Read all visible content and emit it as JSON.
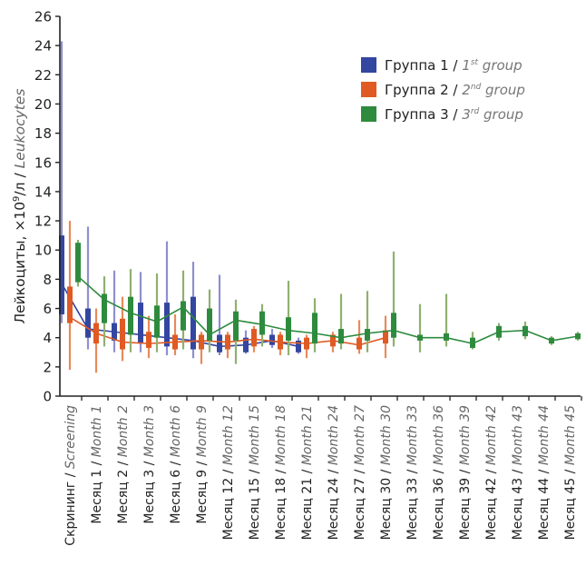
{
  "chart_data": {
    "type": "box",
    "ylabel_main": "Лейкоциты, ×10",
    "ylabel_sup": "9",
    "ylabel_unit": "/л / ",
    "ylabel_en": "Leukocytes",
    "ylim": [
      0,
      26
    ],
    "y_ticks": [
      0,
      2,
      4,
      6,
      8,
      10,
      12,
      14,
      16,
      18,
      20,
      22,
      24,
      26
    ],
    "grid": false,
    "legend_position": "top-right",
    "categories": [
      {
        "ru": "Скрининг / ",
        "en": "Screening"
      },
      {
        "ru": "Месяц 1 / ",
        "en": "Month 1"
      },
      {
        "ru": "Месяц 2 / ",
        "en": "Month 2"
      },
      {
        "ru": "Месяц 3 / ",
        "en": "Month 3"
      },
      {
        "ru": "Месяц 6 / ",
        "en": "Month 6"
      },
      {
        "ru": "Месяц 9 / ",
        "en": "Month 9"
      },
      {
        "ru": "Месяц 12 / ",
        "en": "Month 12"
      },
      {
        "ru": "Месяц 15 / ",
        "en": "Month 15"
      },
      {
        "ru": "Месяц 18 / ",
        "en": "Month 18"
      },
      {
        "ru": "Месяц 21 / ",
        "en": "Month 21"
      },
      {
        "ru": "Месяц 24 / ",
        "en": "Month 24"
      },
      {
        "ru": "Месяц 27 / ",
        "en": "Month 27"
      },
      {
        "ru": "Месяц 30 / ",
        "en": "Month 30"
      },
      {
        "ru": "Месяц 33 / ",
        "en": "Month 33"
      },
      {
        "ru": "Месяц 36 / ",
        "en": "Month 36"
      },
      {
        "ru": "Месяц 39 / ",
        "en": "Month 39"
      },
      {
        "ru": "Месяц 42 / ",
        "en": "Month 42"
      },
      {
        "ru": "Месяц 43 / ",
        "en": "Month 43"
      },
      {
        "ru": "Месяц 44 / ",
        "en": "Month 44"
      },
      {
        "ru": "Месяц 45 / ",
        "en": "Month 45"
      }
    ],
    "series": [
      {
        "name": "Группа 1 / ",
        "name_sup": "1",
        "name_sup_text": "st",
        "name_en": " group",
        "color": "#3346a0",
        "whisker_color": "#8e8fd0",
        "points": [
          {
            "i": 0,
            "median": 7.7,
            "q1": 5.6,
            "q3": 11.0,
            "min": 5.0,
            "max": 24.3
          },
          {
            "i": 1,
            "median": 4.6,
            "q1": 4.0,
            "q3": 6.0,
            "min": 3.2,
            "max": 11.6
          },
          {
            "i": 2,
            "median": 4.4,
            "q1": 3.8,
            "q3": 5.0,
            "min": 3.0,
            "max": 8.6
          },
          {
            "i": 3,
            "median": 4.2,
            "q1": 3.6,
            "q3": 6.4,
            "min": 3.0,
            "max": 8.5
          },
          {
            "i": 4,
            "median": 4.0,
            "q1": 3.4,
            "q3": 6.4,
            "min": 2.8,
            "max": 10.6
          },
          {
            "i": 5,
            "median": 3.8,
            "q1": 3.2,
            "q3": 6.8,
            "min": 2.6,
            "max": 9.2
          },
          {
            "i": 6,
            "median": 3.4,
            "q1": 3.0,
            "q3": 4.2,
            "min": 2.8,
            "max": 8.3
          },
          {
            "i": 7,
            "median": 3.5,
            "q1": 3.0,
            "q3": 4.0,
            "min": 2.9,
            "max": 4.5
          },
          {
            "i": 8,
            "median": 3.8,
            "q1": 3.5,
            "q3": 4.2,
            "min": 3.3,
            "max": 4.6
          },
          {
            "i": 9,
            "median": 3.4,
            "q1": 3.0,
            "q3": 3.8,
            "min": 2.9,
            "max": 4.0
          }
        ]
      },
      {
        "name": "Группа 2 / ",
        "name_sup": "2",
        "name_sup_text": "nd",
        "name_en": " group",
        "color": "#e05a23",
        "whisker_color": "#e88a5a",
        "points": [
          {
            "i": 0,
            "median": 5.4,
            "q1": 5.0,
            "q3": 7.5,
            "min": 1.8,
            "max": 12.0
          },
          {
            "i": 1,
            "median": 4.3,
            "q1": 3.6,
            "q3": 5.0,
            "min": 1.6,
            "max": 6.0
          },
          {
            "i": 2,
            "median": 3.7,
            "q1": 3.2,
            "q3": 5.3,
            "min": 2.4,
            "max": 6.8
          },
          {
            "i": 3,
            "median": 3.6,
            "q1": 3.3,
            "q3": 4.4,
            "min": 2.6,
            "max": 5.5
          },
          {
            "i": 4,
            "median": 3.7,
            "q1": 3.2,
            "q3": 4.2,
            "min": 2.8,
            "max": 5.6
          },
          {
            "i": 5,
            "median": 3.8,
            "q1": 3.2,
            "q3": 4.2,
            "min": 2.2,
            "max": 4.4
          },
          {
            "i": 6,
            "median": 3.7,
            "q1": 3.2,
            "q3": 4.2,
            "min": 2.6,
            "max": 4.4
          },
          {
            "i": 7,
            "median": 3.9,
            "q1": 3.4,
            "q3": 4.6,
            "min": 3.0,
            "max": 4.8
          },
          {
            "i": 8,
            "median": 3.7,
            "q1": 3.2,
            "q3": 4.2,
            "min": 2.8,
            "max": 4.4
          },
          {
            "i": 9,
            "median": 3.6,
            "q1": 3.2,
            "q3": 4.0,
            "min": 2.6,
            "max": 4.2
          },
          {
            "i": 10,
            "median": 3.8,
            "q1": 3.4,
            "q3": 4.2,
            "min": 3.0,
            "max": 4.4
          },
          {
            "i": 11,
            "median": 3.5,
            "q1": 3.2,
            "q3": 4.0,
            "min": 2.9,
            "max": 5.2
          },
          {
            "i": 12,
            "median": 4.0,
            "q1": 3.6,
            "q3": 4.5,
            "min": 2.6,
            "max": 5.5
          }
        ]
      },
      {
        "name": "Группа 3 / ",
        "name_sup": "3",
        "name_sup_text": "rd",
        "name_en": " group",
        "color": "#2e8b3e",
        "whisker_color": "#8fb070",
        "points": [
          {
            "i": 0,
            "median": 8.2,
            "q1": 7.8,
            "q3": 10.5,
            "min": 7.5,
            "max": 10.7
          },
          {
            "i": 1,
            "median": 6.6,
            "q1": 5.0,
            "q3": 7.0,
            "min": 3.4,
            "max": 8.2
          },
          {
            "i": 2,
            "median": 5.7,
            "q1": 4.2,
            "q3": 6.8,
            "min": 3.0,
            "max": 8.7
          },
          {
            "i": 3,
            "median": 5.1,
            "q1": 4.0,
            "q3": 6.2,
            "min": 3.0,
            "max": 8.4
          },
          {
            "i": 4,
            "median": 6.1,
            "q1": 4.5,
            "q3": 6.5,
            "min": 3.2,
            "max": 8.6
          },
          {
            "i": 5,
            "median": 4.2,
            "q1": 3.8,
            "q3": 6.0,
            "min": 3.0,
            "max": 7.3
          },
          {
            "i": 6,
            "median": 5.2,
            "q1": 3.8,
            "q3": 5.8,
            "min": 2.2,
            "max": 6.6
          },
          {
            "i": 7,
            "median": 4.9,
            "q1": 4.2,
            "q3": 5.8,
            "min": 3.4,
            "max": 6.3
          },
          {
            "i": 8,
            "median": 4.5,
            "q1": 3.8,
            "q3": 5.4,
            "min": 2.8,
            "max": 7.9
          },
          {
            "i": 9,
            "median": 4.3,
            "q1": 3.6,
            "q3": 5.7,
            "min": 3.0,
            "max": 6.7
          },
          {
            "i": 10,
            "median": 4.0,
            "q1": 3.6,
            "q3": 4.6,
            "min": 3.2,
            "max": 7.0
          },
          {
            "i": 11,
            "median": 4.3,
            "q1": 3.8,
            "q3": 4.6,
            "min": 3.0,
            "max": 7.2
          },
          {
            "i": 12,
            "median": 4.5,
            "q1": 4.0,
            "q3": 5.7,
            "min": 3.4,
            "max": 9.9
          },
          {
            "i": 13,
            "median": 4.0,
            "q1": 3.8,
            "q3": 4.2,
            "min": 3.0,
            "max": 6.3
          },
          {
            "i": 14,
            "median": 4.0,
            "q1": 3.8,
            "q3": 4.3,
            "min": 3.4,
            "max": 7.0
          },
          {
            "i": 15,
            "median": 3.6,
            "q1": 3.3,
            "q3": 4.0,
            "min": 3.2,
            "max": 4.4
          },
          {
            "i": 16,
            "median": 4.4,
            "q1": 4.0,
            "q3": 4.8,
            "min": 3.8,
            "max": 5.0
          },
          {
            "i": 17,
            "median": 4.5,
            "q1": 4.1,
            "q3": 4.8,
            "min": 3.9,
            "max": 5.1
          },
          {
            "i": 18,
            "median": 3.8,
            "q1": 3.6,
            "q3": 4.0,
            "min": 3.5,
            "max": 4.1
          },
          {
            "i": 19,
            "median": 4.1,
            "q1": 3.9,
            "q3": 4.3,
            "min": 3.8,
            "max": 4.4
          }
        ]
      }
    ]
  }
}
